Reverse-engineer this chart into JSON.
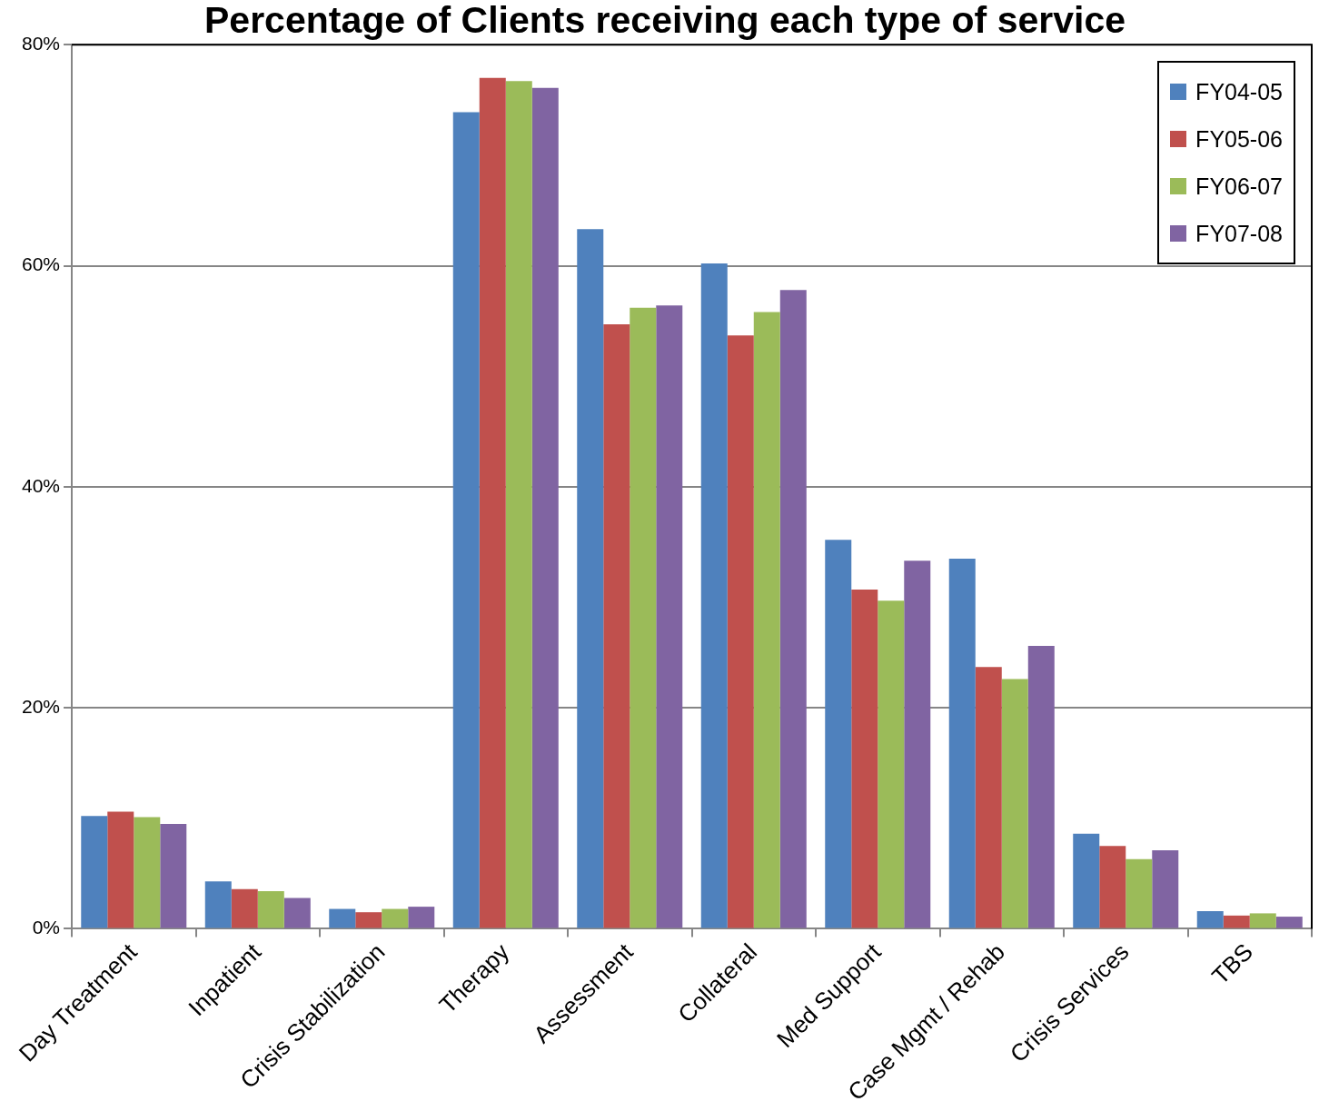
{
  "chart_data": {
    "type": "bar",
    "title": "Percentage of Clients receiving each type of service",
    "categories": [
      "Day Treatment",
      "Inpatient",
      "Crisis Stabilization",
      "Therapy",
      "Assessment",
      "Collateral",
      "Med Support",
      "Case Mgmt / Rehab",
      "Crisis Services",
      "TBS"
    ],
    "series": [
      {
        "name": "FY04-05",
        "color": "#4f81bd",
        "values": [
          10.2,
          4.3,
          1.8,
          73.9,
          63.3,
          60.2,
          35.2,
          33.5,
          8.6,
          1.6
        ]
      },
      {
        "name": "FY05-06",
        "color": "#c0504d",
        "values": [
          10.6,
          3.6,
          1.5,
          77.0,
          54.7,
          53.7,
          30.7,
          23.7,
          7.5,
          1.2
        ]
      },
      {
        "name": "FY06-07",
        "color": "#9bbb59",
        "values": [
          10.1,
          3.4,
          1.8,
          76.7,
          56.2,
          55.8,
          29.7,
          22.6,
          6.3,
          1.4
        ]
      },
      {
        "name": "FY07-08",
        "color": "#8064a2",
        "values": [
          9.5,
          2.8,
          2.0,
          76.1,
          56.4,
          57.8,
          33.3,
          25.6,
          7.1,
          1.1
        ]
      }
    ],
    "ylim": [
      0,
      80
    ],
    "yticks": [
      {
        "value": 0,
        "label": "0%"
      },
      {
        "value": 20,
        "label": "20%"
      },
      {
        "value": 40,
        "label": "40%"
      },
      {
        "value": 60,
        "label": "60%"
      },
      {
        "value": 80,
        "label": "80%"
      }
    ],
    "grid": "y",
    "legend": "top right"
  }
}
